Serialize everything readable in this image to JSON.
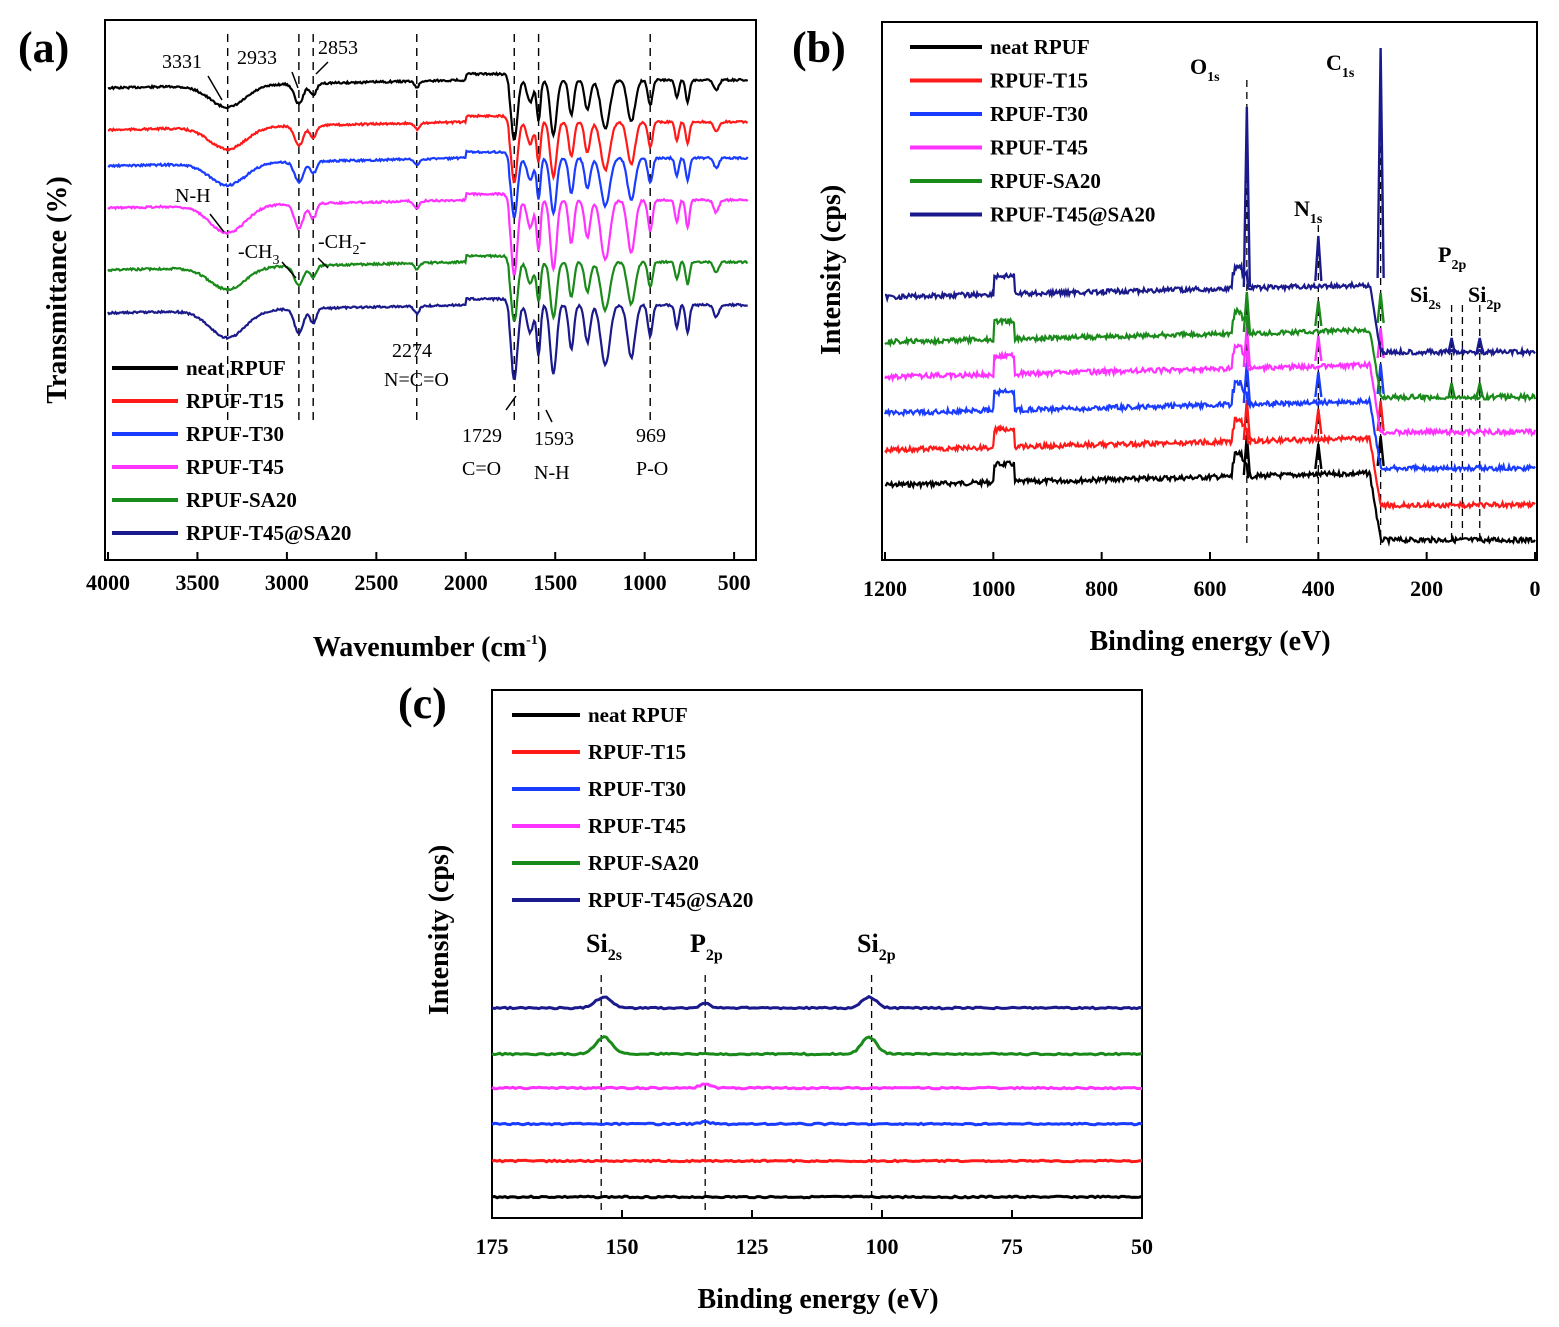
{
  "series_colors": {
    "neat RPUF": "#000000",
    "RPUF-T15": "#ff1a1a",
    "RPUF-T30": "#1a3cff",
    "RPUF-T45": "#ff33ff",
    "RPUF-SA20": "#1a8a1a",
    "RPUF-T45@SA20": "#1a1a8c"
  },
  "chart_data": [
    {
      "panel": "(a)",
      "type": "line",
      "xlabel": "Wavenumber (cm-1)",
      "ylabel": "Transmittance (%)",
      "xlim": [
        4000,
        400
      ],
      "xticks": [
        "4000",
        "3500",
        "3000",
        "2500",
        "2000",
        "1500",
        "1000",
        "500"
      ],
      "xtick_values": [
        4000,
        3500,
        3000,
        2500,
        2000,
        1500,
        1000,
        500
      ],
      "legend": [
        "neat RPUF",
        "RPUF-T15",
        "RPUF-T30",
        "RPUF-T45",
        "RPUF-SA20",
        "RPUF-T45@SA20"
      ],
      "series_offsets": [
        0,
        1,
        2,
        3,
        4,
        5
      ],
      "reference_lines": [
        3331,
        2933,
        2853,
        2274,
        1729,
        1593,
        969
      ],
      "annotations": [
        {
          "text": "3331",
          "x": 3331
        },
        {
          "text": "2933",
          "x": 2933
        },
        {
          "text": "2853",
          "x": 2853
        },
        {
          "text": "N-H",
          "x": 3331
        },
        {
          "text": "-CH3",
          "x": 2933
        },
        {
          "text": "-CH2-",
          "x": 2853
        },
        {
          "text": "2274",
          "x": 2274
        },
        {
          "text": "N=C=O",
          "x": 2274
        },
        {
          "text": "1729",
          "x": 1729
        },
        {
          "text": "C=O",
          "x": 1729
        },
        {
          "text": "1593",
          "x": 1593
        },
        {
          "text": "N-H",
          "x": 1593
        },
        {
          "text": "969",
          "x": 969
        },
        {
          "text": "P-O",
          "x": 969
        }
      ]
    },
    {
      "panel": "(b)",
      "type": "line",
      "xlabel": "Binding energy (eV)",
      "ylabel": "Intensity (cps)",
      "xlim": [
        1200,
        0
      ],
      "xticks": [
        "1200",
        "1000",
        "800",
        "600",
        "400",
        "200",
        "0"
      ],
      "xtick_values": [
        1200,
        1000,
        800,
        600,
        400,
        200,
        0
      ],
      "legend": [
        "neat RPUF",
        "RPUF-T15",
        "RPUF-T30",
        "RPUF-T45",
        "RPUF-SA20",
        "RPUF-T45@SA20"
      ],
      "peaks": [
        {
          "label": "O",
          "sub": "1s",
          "x": 532
        },
        {
          "label": "N",
          "sub": "1s",
          "x": 400
        },
        {
          "label": "C",
          "sub": "1s",
          "x": 285
        },
        {
          "label": "Si",
          "sub": "2s",
          "x": 154
        },
        {
          "label": "P",
          "sub": "2p",
          "x": 134
        },
        {
          "label": "Si",
          "sub": "2p",
          "x": 102
        }
      ]
    },
    {
      "panel": "(c)",
      "type": "line",
      "xlabel": "Binding energy (eV)",
      "ylabel": "Intensity (cps)",
      "xlim": [
        175,
        50
      ],
      "xticks": [
        "175",
        "150",
        "125",
        "100",
        "75",
        "50"
      ],
      "xtick_values": [
        175,
        150,
        125,
        100,
        75,
        50
      ],
      "legend": [
        "neat RPUF",
        "RPUF-T15",
        "RPUF-T30",
        "RPUF-T45",
        "RPUF-SA20",
        "RPUF-T45@SA20"
      ],
      "peaks": [
        {
          "label": "Si",
          "sub": "2s",
          "x": 154
        },
        {
          "label": "P",
          "sub": "2p",
          "x": 134
        },
        {
          "label": "Si",
          "sub": "2p",
          "x": 102
        }
      ]
    }
  ]
}
